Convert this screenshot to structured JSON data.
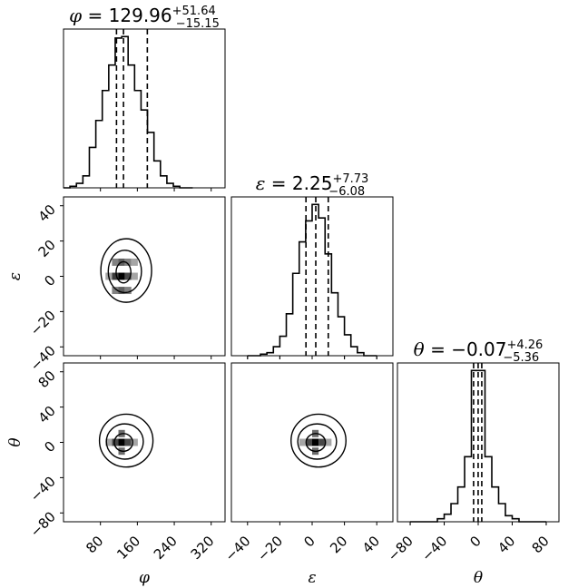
{
  "chart_data": {
    "type": "corner",
    "parameters": [
      "φ",
      "ε",
      "θ"
    ],
    "marginals": [
      {
        "param": "φ",
        "title": {
          "lhs": "φ",
          "median": "129.96",
          "upper": "+51.64",
          "lower": "−15.15"
        },
        "quantiles": [
          114.81,
          129.96,
          181.6
        ],
        "xlim": [
          0,
          350
        ],
        "ticks": [
          80,
          160,
          240,
          320
        ],
        "bins": [
          {
            "x0": 0,
            "x1": 14,
            "y": 0
          },
          {
            "x0": 14,
            "x1": 28,
            "y": 1
          },
          {
            "x0": 28,
            "x1": 42,
            "y": 3
          },
          {
            "x0": 42,
            "x1": 56,
            "y": 8
          },
          {
            "x0": 56,
            "x1": 70,
            "y": 27
          },
          {
            "x0": 70,
            "x1": 84,
            "y": 45
          },
          {
            "x0": 84,
            "x1": 98,
            "y": 65
          },
          {
            "x0": 98,
            "x1": 112,
            "y": 82
          },
          {
            "x0": 112,
            "x1": 126,
            "y": 100
          },
          {
            "x0": 126,
            "x1": 140,
            "y": 101
          },
          {
            "x0": 140,
            "x1": 154,
            "y": 82
          },
          {
            "x0": 154,
            "x1": 168,
            "y": 65
          },
          {
            "x0": 168,
            "x1": 182,
            "y": 52
          },
          {
            "x0": 182,
            "x1": 196,
            "y": 37
          },
          {
            "x0": 196,
            "x1": 210,
            "y": 18
          },
          {
            "x0": 210,
            "x1": 224,
            "y": 8
          },
          {
            "x0": 224,
            "x1": 238,
            "y": 3
          },
          {
            "x0": 238,
            "x1": 252,
            "y": 1
          },
          {
            "x0": 252,
            "x1": 266,
            "y": 0
          },
          {
            "x0": 266,
            "x1": 280,
            "y": 0
          }
        ]
      },
      {
        "param": "ε",
        "title": {
          "lhs": "ε",
          "median": "2.25",
          "upper": "+7.73",
          "lower": "−6.08"
        },
        "quantiles": [
          -3.83,
          2.25,
          9.98
        ],
        "xlim": [
          -50,
          50
        ],
        "ticks": [
          -40,
          -20,
          0,
          20,
          40
        ],
        "bins": [
          {
            "x0": -40,
            "x1": -36,
            "y": 0
          },
          {
            "x0": -36,
            "x1": -32,
            "y": 0
          },
          {
            "x0": -32,
            "x1": -28,
            "y": 1
          },
          {
            "x0": -28,
            "x1": -24,
            "y": 2
          },
          {
            "x0": -24,
            "x1": -20,
            "y": 6
          },
          {
            "x0": -20,
            "x1": -16,
            "y": 13
          },
          {
            "x0": -16,
            "x1": -12,
            "y": 28
          },
          {
            "x0": -12,
            "x1": -8,
            "y": 55
          },
          {
            "x0": -8,
            "x1": -4,
            "y": 76
          },
          {
            "x0": -4,
            "x1": 0,
            "y": 90
          },
          {
            "x0": 0,
            "x1": 4,
            "y": 101
          },
          {
            "x0": 4,
            "x1": 8,
            "y": 92
          },
          {
            "x0": 8,
            "x1": 12,
            "y": 68
          },
          {
            "x0": 12,
            "x1": 16,
            "y": 42
          },
          {
            "x0": 16,
            "x1": 20,
            "y": 26
          },
          {
            "x0": 20,
            "x1": 24,
            "y": 14
          },
          {
            "x0": 24,
            "x1": 28,
            "y": 6
          },
          {
            "x0": 28,
            "x1": 32,
            "y": 2
          },
          {
            "x0": 32,
            "x1": 36,
            "y": 0
          },
          {
            "x0": 36,
            "x1": 40,
            "y": 0
          }
        ]
      },
      {
        "param": "θ",
        "title": {
          "lhs": "θ",
          "median": "−0.07",
          "upper": "+4.26",
          "lower": "−5.36"
        },
        "quantiles": [
          -5.43,
          -0.07,
          4.19
        ],
        "xlim": [
          -95,
          95
        ],
        "ticks": [
          -80,
          -40,
          0,
          40,
          80
        ],
        "bins": [
          {
            "x0": -80,
            "x1": -72,
            "y": 0
          },
          {
            "x0": -72,
            "x1": -64,
            "y": 0
          },
          {
            "x0": -64,
            "x1": -56,
            "y": 0
          },
          {
            "x0": -56,
            "x1": -48,
            "y": 0
          },
          {
            "x0": -48,
            "x1": -40,
            "y": 2
          },
          {
            "x0": -40,
            "x1": -32,
            "y": 5
          },
          {
            "x0": -32,
            "x1": -24,
            "y": 12
          },
          {
            "x0": -24,
            "x1": -16,
            "y": 23
          },
          {
            "x0": -16,
            "x1": -8,
            "y": 43
          },
          {
            "x0": -8,
            "x1": 0,
            "y": 100
          },
          {
            "x0": 0,
            "x1": 8,
            "y": 100
          },
          {
            "x0": 8,
            "x1": 16,
            "y": 43
          },
          {
            "x0": 16,
            "x1": 24,
            "y": 23
          },
          {
            "x0": 24,
            "x1": 32,
            "y": 12
          },
          {
            "x0": 32,
            "x1": 40,
            "y": 4
          },
          {
            "x0": 40,
            "x1": 48,
            "y": 2
          },
          {
            "x0": 48,
            "x1": 56,
            "y": 0
          },
          {
            "x0": 56,
            "x1": 64,
            "y": 0
          },
          {
            "x0": 64,
            "x1": 72,
            "y": 0
          },
          {
            "x0": 72,
            "x1": 80,
            "y": 0
          }
        ]
      }
    ],
    "joints": [
      {
        "x": "φ",
        "y": "ε",
        "center": [
          129.96,
          2.25
        ],
        "contour_halfwidths": [
          [
            16,
            6
          ],
          [
            36,
            12
          ],
          [
            55,
            18
          ]
        ],
        "density": [
          {
            "x": 126,
            "y": 0,
            "level": 1.0
          },
          {
            "x": 112,
            "y": 0,
            "level": 0.75
          },
          {
            "x": 140,
            "y": 0,
            "level": 0.7
          },
          {
            "x": 126,
            "y": 8,
            "level": 0.6
          },
          {
            "x": 126,
            "y": -8,
            "level": 0.6
          },
          {
            "x": 112,
            "y": 8,
            "level": 0.45
          },
          {
            "x": 140,
            "y": 8,
            "level": 0.45
          },
          {
            "x": 112,
            "y": -8,
            "level": 0.45
          },
          {
            "x": 140,
            "y": -8,
            "level": 0.45
          },
          {
            "x": 154,
            "y": 8,
            "level": 0.3
          },
          {
            "x": 154,
            "y": 0,
            "level": 0.3
          },
          {
            "x": 98,
            "y": 0,
            "level": 0.3
          }
        ],
        "xlim": [
          0,
          350
        ],
        "ylim": [
          -45,
          45
        ],
        "yticks": [
          -40,
          -20,
          0,
          20,
          40
        ]
      },
      {
        "x": "φ",
        "y": "θ",
        "center": [
          129.96,
          -0.07
        ],
        "contour_halfwidths": [
          [
            20,
            10
          ],
          [
            40,
            20
          ],
          [
            58,
            30
          ]
        ],
        "density": [
          {
            "x": 126,
            "y": 0,
            "level": 1.0
          },
          {
            "x": 112,
            "y": 0,
            "level": 0.7
          },
          {
            "x": 140,
            "y": 0,
            "level": 0.7
          },
          {
            "x": 126,
            "y": 10,
            "level": 0.55
          },
          {
            "x": 126,
            "y": -10,
            "level": 0.55
          },
          {
            "x": 154,
            "y": 0,
            "level": 0.3
          },
          {
            "x": 98,
            "y": 0,
            "level": 0.3
          }
        ],
        "xlim": [
          0,
          350
        ],
        "ylim": [
          -90,
          90
        ],
        "yticks": [
          -80,
          -40,
          0,
          40,
          80
        ]
      },
      {
        "x": "ε",
        "y": "θ",
        "center": [
          2.25,
          -0.07
        ],
        "contour_halfwidths": [
          [
            6,
            10
          ],
          [
            12,
            20
          ],
          [
            17,
            30
          ]
        ],
        "density": [
          {
            "x": 2,
            "y": 0,
            "level": 1.0
          },
          {
            "x": -2,
            "y": 0,
            "level": 0.7
          },
          {
            "x": 6,
            "y": 0,
            "level": 0.7
          },
          {
            "x": 2,
            "y": 10,
            "level": 0.55
          },
          {
            "x": 2,
            "y": -10,
            "level": 0.55
          },
          {
            "x": 10,
            "y": 0,
            "level": 0.3
          },
          {
            "x": -6,
            "y": 0,
            "level": 0.3
          }
        ],
        "xlim": [
          -50,
          50
        ],
        "ylim": [
          -90,
          90
        ]
      }
    ],
    "xlabels": [
      "φ",
      "ε",
      "θ"
    ],
    "ylabels": [
      "",
      "ε",
      "θ"
    ],
    "colors": {
      "line": "#000000",
      "background": "#ffffff"
    }
  }
}
